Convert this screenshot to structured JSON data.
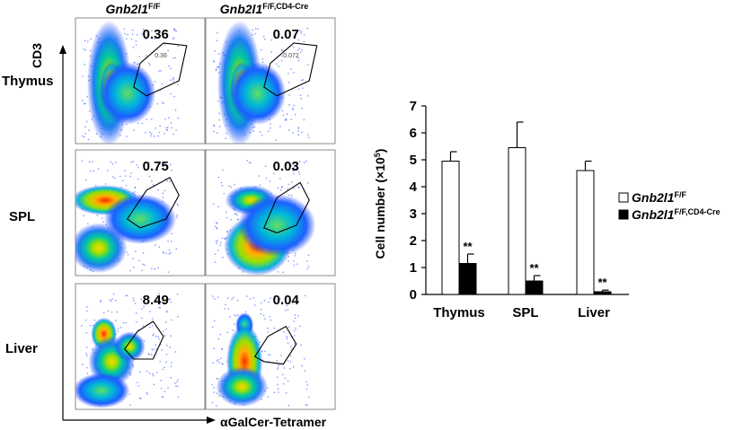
{
  "flow": {
    "col_headers": [
      {
        "main": "Gnb2l1",
        "sup": "F/F"
      },
      {
        "main": "Gnb2l1",
        "sup": "F/F,CD4-Cre"
      }
    ],
    "row_labels": [
      "Thymus",
      "SPL",
      "Liver"
    ],
    "y_axis_label": "CD3",
    "x_axis_label": "αGalCer-Tetramer",
    "panels": [
      {
        "row": "Thymus",
        "col": "Gnb2l1 F/F",
        "percent": "0.36",
        "gate_label": "0.36",
        "pattern": "thymus"
      },
      {
        "row": "Thymus",
        "col": "Gnb2l1 F/F,CD4-Cre",
        "percent": "0.07",
        "gate_label": "0.072",
        "pattern": "thymus"
      },
      {
        "row": "SPL",
        "col": "Gnb2l1 F/F",
        "percent": "0.75",
        "gate_label": "",
        "pattern": "spl_wt"
      },
      {
        "row": "SPL",
        "col": "Gnb2l1 F/F,CD4-Cre",
        "percent": "0.03",
        "gate_label": "",
        "pattern": "spl_ko"
      },
      {
        "row": "Liver",
        "col": "Gnb2l1 F/F",
        "percent": "8.49",
        "gate_label": "",
        "pattern": "liver_wt"
      },
      {
        "row": "Liver",
        "col": "Gnb2l1 F/F,CD4-Cre",
        "percent": "0.04",
        "gate_label": "",
        "pattern": "liver_ko"
      }
    ]
  },
  "chart_data": {
    "type": "bar",
    "categories": [
      "Thymus",
      "SPL",
      "Liver"
    ],
    "ylabel": "Cell number (×10",
    "ylabel_sup": "5",
    "ylabel_end": ")",
    "ylim": [
      0,
      7
    ],
    "yticks": [
      0,
      1,
      2,
      3,
      4,
      5,
      6,
      7
    ],
    "series": [
      {
        "name": "Gnb2l1",
        "name_sup": "F/F",
        "color": "#ffffff",
        "values": [
          4.95,
          5.45,
          4.6
        ],
        "errors": [
          0.35,
          0.95,
          0.35
        ]
      },
      {
        "name": "Gnb2l1",
        "name_sup": "F/F,CD4-Cre",
        "color": "#000000",
        "values": [
          1.15,
          0.5,
          0.1
        ],
        "errors": [
          0.35,
          0.2,
          0.06
        ]
      }
    ],
    "annotations": [
      "**",
      "**",
      "**"
    ],
    "legend_position": "right"
  },
  "colors": {
    "gate": "#000000",
    "axis": "#000000"
  }
}
